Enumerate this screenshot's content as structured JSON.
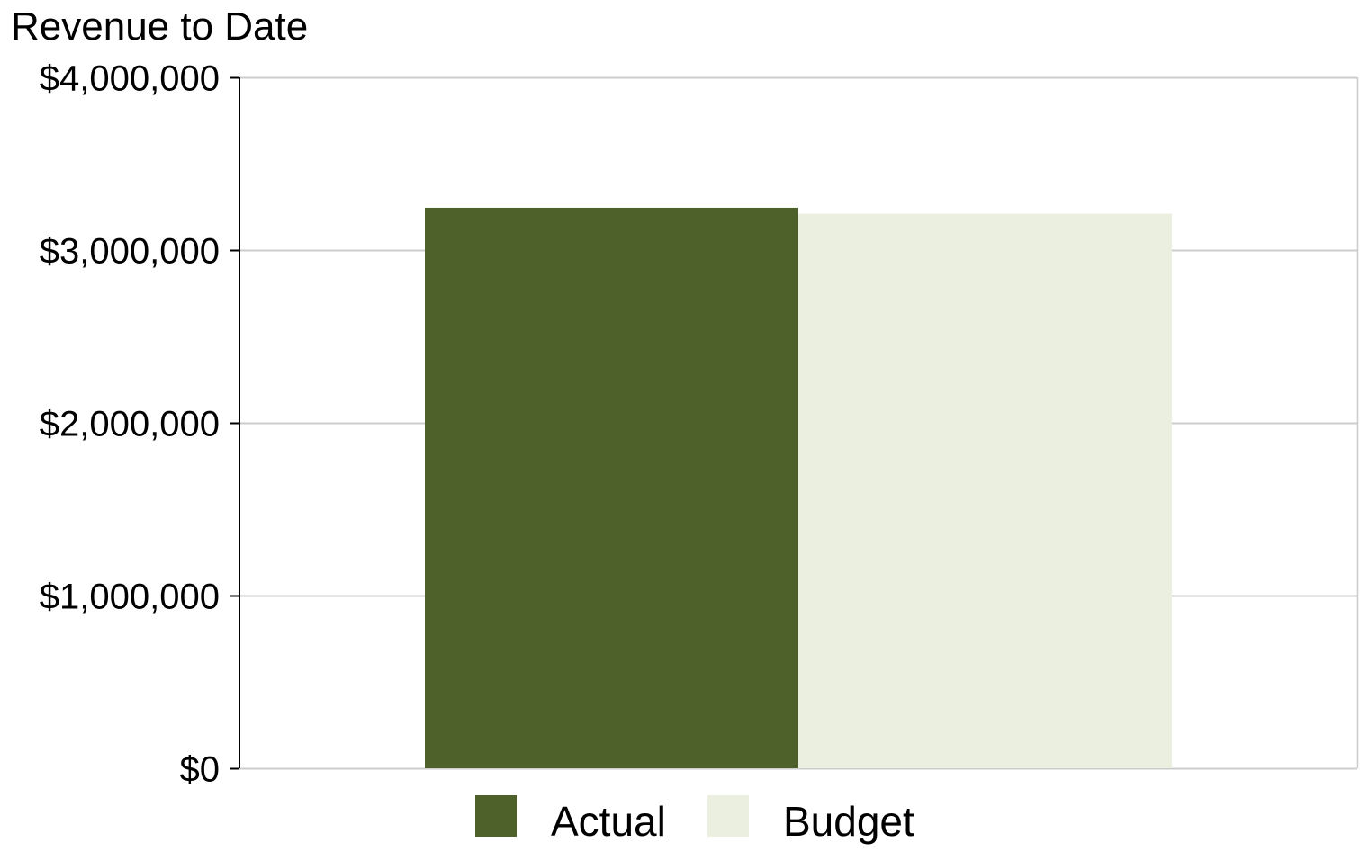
{
  "chart_data": {
    "type": "bar",
    "title": "Revenue to Date",
    "xlabel": "",
    "ylabel": "",
    "categories": [
      ""
    ],
    "series": [
      {
        "name": "Actual",
        "values": [
          3245000
        ],
        "color": "#4f612b"
      },
      {
        "name": "Budget",
        "values": [
          3210000
        ],
        "color": "#ebefdf"
      }
    ],
    "ylim": [
      0,
      4000000
    ],
    "yticks": [
      0,
      1000000,
      2000000,
      3000000,
      4000000
    ],
    "ytick_labels": [
      "$0",
      "$1,000,000",
      "$2,000,000",
      "$3,000,000",
      "$4,000,000"
    ],
    "grid": true,
    "grid_color": "#cccccc",
    "axis_color": "#000000",
    "legend_position": "bottom-center"
  }
}
